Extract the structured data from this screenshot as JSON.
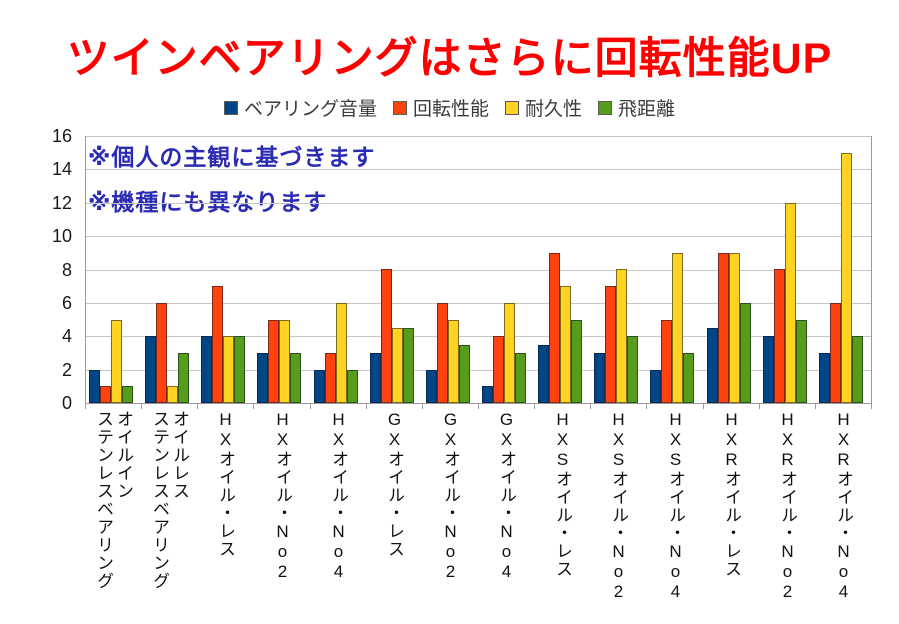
{
  "title": "ツインベアリングはさらに回転性能UP",
  "title_color": "#ff0000",
  "notes": {
    "line1": "※個人の主観に基づきます",
    "line2": "※機種にも異なります",
    "color": "#2b2bb4"
  },
  "chart_data": {
    "type": "bar",
    "categories": [
      "オイルイン\nステンレスベアリング",
      "オイルレス\nステンレスベアリング",
      "HXオイル・レス",
      "HXオイル・No2",
      "HXオイル・No4",
      "GXオイル・レス",
      "GXオイル・No2",
      "GXオイル・No4",
      "HXSオイル・レス",
      "HXSオイル・No2",
      "HXSオイル・No4",
      "HXRオイル・レス",
      "HXRオイル・No2",
      "HXRオイル・No4"
    ],
    "series": [
      {
        "name": "ベアリング音量",
        "color": "#004586",
        "values": [
          2,
          4,
          4,
          3,
          2,
          3,
          2,
          1,
          3.5,
          3,
          2,
          4.5,
          4,
          3
        ]
      },
      {
        "name": "回転性能",
        "color": "#ff420e",
        "values": [
          1,
          6,
          7,
          5,
          3,
          8,
          6,
          4,
          9,
          7,
          5,
          9,
          8,
          6
        ]
      },
      {
        "name": "耐久性",
        "color": "#ffd320",
        "values": [
          5,
          1,
          4,
          5,
          6,
          4.5,
          5,
          6,
          7,
          8,
          9,
          9,
          12,
          15
        ]
      },
      {
        "name": "飛距離",
        "color": "#579d1c",
        "values": [
          1,
          3,
          4,
          3,
          2,
          4.5,
          3.5,
          3,
          5,
          4,
          3,
          6,
          5,
          4
        ]
      }
    ],
    "ylim": [
      0,
      16
    ],
    "ytick_step": 2,
    "grid": true,
    "legend_position": "top"
  }
}
